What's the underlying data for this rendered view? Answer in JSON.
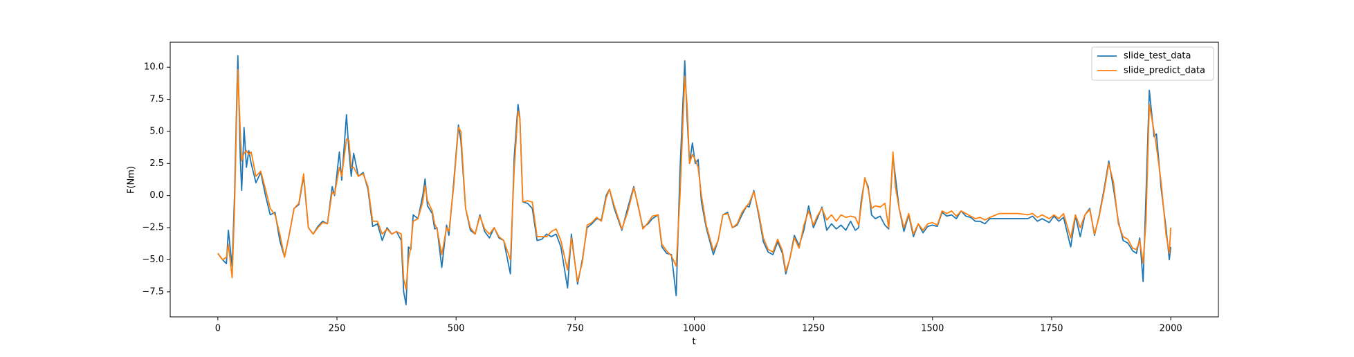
{
  "chart_data": {
    "type": "line",
    "xlabel": "t",
    "ylabel": "F(Nm)",
    "legend": "upper right",
    "grid": false,
    "xlim": [
      -100,
      2100
    ],
    "ylim": [
      -9.45,
      11.95
    ],
    "xticks": [
      0,
      250,
      500,
      750,
      1000,
      1250,
      1500,
      1750,
      2000
    ],
    "yticks": [
      {
        "value": -7.5,
        "label": "−7.5"
      },
      {
        "value": -5,
        "label": "−5.0"
      },
      {
        "value": -2.5,
        "label": "−2.5"
      },
      {
        "value": 0,
        "label": "0.0"
      },
      {
        "value": 2.5,
        "label": "2.5"
      },
      {
        "value": 5,
        "label": "5.0"
      },
      {
        "value": 7.5,
        "label": "7.5"
      },
      {
        "value": 10,
        "label": "10.0"
      }
    ],
    "x": [
      0,
      10,
      18,
      22,
      30,
      35,
      40,
      42,
      47,
      50,
      55,
      60,
      65,
      70,
      80,
      90,
      100,
      110,
      120,
      130,
      140,
      150,
      160,
      170,
      180,
      190,
      200,
      210,
      220,
      230,
      240,
      245,
      255,
      260,
      270,
      275,
      280,
      285,
      295,
      305,
      315,
      325,
      335,
      345,
      355,
      365,
      375,
      385,
      390,
      395,
      400,
      405,
      410,
      420,
      430,
      435,
      440,
      450,
      455,
      460,
      470,
      480,
      485,
      495,
      505,
      510,
      520,
      530,
      540,
      550,
      560,
      570,
      580,
      590,
      600,
      614,
      622,
      630,
      634,
      640,
      650,
      660,
      670,
      680,
      690,
      700,
      710,
      720,
      734,
      742,
      755,
      765,
      775,
      785,
      795,
      805,
      815,
      822,
      832,
      848,
      860,
      873,
      882,
      892,
      903,
      912,
      924,
      932,
      942,
      952,
      962,
      970,
      980,
      985,
      990,
      996,
      1002,
      1008,
      1015,
      1025,
      1040,
      1050,
      1060,
      1070,
      1080,
      1090,
      1100,
      1110,
      1115,
      1125,
      1135,
      1145,
      1155,
      1165,
      1175,
      1185,
      1192,
      1200,
      1210,
      1220,
      1230,
      1240,
      1250,
      1258,
      1268,
      1278,
      1288,
      1298,
      1308,
      1318,
      1328,
      1338,
      1345,
      1350,
      1358,
      1365,
      1372,
      1380,
      1390,
      1400,
      1408,
      1417,
      1422,
      1430,
      1440,
      1450,
      1460,
      1470,
      1480,
      1490,
      1500,
      1510,
      1520,
      1530,
      1540,
      1550,
      1560,
      1570,
      1580,
      1590,
      1600,
      1610,
      1620,
      1640,
      1660,
      1680,
      1700,
      1710,
      1720,
      1730,
      1745,
      1755,
      1765,
      1775,
      1790,
      1800,
      1810,
      1820,
      1830,
      1840,
      1850,
      1860,
      1870,
      1880,
      1890,
      1900,
      1910,
      1920,
      1928,
      1935,
      1942,
      1948,
      1955,
      1965,
      1970,
      1980,
      1990,
      1997,
      2000
    ],
    "series": [
      {
        "name": "slide_test_data",
        "color": "#1f77b4",
        "values": [
          -4.5,
          -5.0,
          -5.3,
          -2.7,
          -5.5,
          0,
          8,
          10.9,
          3,
          0.4,
          5.3,
          2.2,
          3.5,
          2.5,
          1,
          1.8,
          0,
          -1.5,
          -1.3,
          -3.5,
          -4.8,
          -3,
          -1,
          -0.7,
          1.5,
          -2.5,
          -3,
          -2.4,
          -2,
          -2.2,
          0.7,
          0,
          3.4,
          1.2,
          6.3,
          3.5,
          1.5,
          3.3,
          1.5,
          1.8,
          0.5,
          -2.4,
          -2.2,
          -3.5,
          -2.5,
          -3,
          -2.8,
          -3.5,
          -7.5,
          -8.5,
          -4,
          -4.2,
          -1.5,
          -1.8,
          0,
          1.3,
          -0.8,
          -1.4,
          -2.6,
          -2.5,
          -5.6,
          -2.3,
          -3.1,
          1,
          5.5,
          4.3,
          -1,
          -2.7,
          -3,
          -1.5,
          -2.8,
          -3.3,
          -2.5,
          -3.3,
          -3.5,
          -6.1,
          3,
          7.1,
          6,
          -0.5,
          -0.6,
          -1,
          -3.5,
          -3.4,
          -3.0,
          -3.2,
          -3.0,
          -4,
          -7.2,
          -3,
          -6.9,
          -5,
          -2.5,
          -2.2,
          -1.8,
          -1.9,
          0,
          0.5,
          -1,
          -2.7,
          -1,
          0.7,
          -0.8,
          -2.5,
          -2.2,
          -1.8,
          -1.5,
          -4,
          -4.5,
          -4.6,
          -7.8,
          2,
          10.5,
          6,
          2.5,
          4.1,
          2.5,
          2.8,
          -0.5,
          -2.5,
          -4.6,
          -3.5,
          -1.5,
          -1.3,
          -2.5,
          -2.3,
          -1.5,
          -0.8,
          -0.9,
          0.4,
          -1.5,
          -3.6,
          -4.4,
          -4.6,
          -3.6,
          -4.5,
          -6.1,
          -5,
          -3.1,
          -3.9,
          -2.7,
          -0.8,
          -2.5,
          -1.8,
          -0.9,
          -2.7,
          -2.2,
          -2.6,
          -2.3,
          -2.7,
          -2,
          -2.7,
          -2.5,
          -0.5,
          1.3,
          0.7,
          -1.5,
          -1.8,
          -1.6,
          -2.3,
          -2.6,
          3.1,
          1.5,
          -1,
          -2.8,
          -1.5,
          -3.2,
          -2.2,
          -2.9,
          -2.4,
          -2.3,
          -2.4,
          -1.3,
          -1.6,
          -1.5,
          -1.8,
          -1.2,
          -1.6,
          -1.7,
          -2,
          -2,
          -2.2,
          -1.8,
          -1.8,
          -1.8,
          -1.8,
          -1.8,
          -1.6,
          -2,
          -1.8,
          -2.1,
          -1.6,
          -2,
          -1.7,
          -4,
          -1.6,
          -3.2,
          -1.5,
          -1,
          -3.1,
          -1.5,
          0.5,
          2.7,
          0.5,
          -2,
          -3.5,
          -3.7,
          -4.3,
          -4.5,
          -3.3,
          -6.7,
          0,
          8.2,
          4.6,
          4.8,
          0.5,
          -2.5,
          -5,
          -4
        ]
      },
      {
        "name": "slide_predict_data",
        "color": "#ff7f0e",
        "values": [
          -4.5,
          -5.0,
          -4.8,
          -3.8,
          -6.4,
          -1,
          7,
          9.8,
          5,
          2.7,
          3.3,
          3.5,
          3.2,
          3.4,
          1.5,
          1.9,
          0.5,
          -1,
          -1.5,
          -3,
          -4.8,
          -3,
          -1,
          -0.6,
          1.7,
          -2.5,
          -3,
          -2.5,
          -2.1,
          -2.2,
          0.3,
          0.1,
          2.2,
          1.5,
          4.4,
          4.3,
          2.2,
          2.2,
          1.5,
          1.7,
          0.7,
          -2,
          -2,
          -3,
          -2.6,
          -3,
          -2.8,
          -3,
          -6.5,
          -7.3,
          -5,
          -4,
          -2,
          -1.8,
          -0.5,
          0.8,
          -0.4,
          -1.2,
          -2.2,
          -2.6,
          -4.6,
          -2.5,
          -2.8,
          0.7,
          5.3,
          5,
          -1,
          -2.5,
          -3,
          -1.6,
          -2.6,
          -3,
          -2.5,
          -3.2,
          -3.5,
          -5,
          2,
          6.6,
          6,
          -0.5,
          -0.4,
          -0.5,
          -3.2,
          -3.2,
          -3.2,
          -2.8,
          -2.6,
          -3.5,
          -5.8,
          -3.3,
          -6.7,
          -5.2,
          -2.3,
          -2.1,
          -1.7,
          -2,
          -0.2,
          0.5,
          -0.8,
          -2.6,
          -1.3,
          0.6,
          -0.7,
          -2.6,
          -2.1,
          -1.6,
          -1.5,
          -3.8,
          -4.3,
          -4.7,
          -5.5,
          0,
          9.3,
          7,
          2.5,
          3.2,
          2.8,
          2.2,
          0,
          -2.3,
          -4.3,
          -3.5,
          -1.5,
          -1.4,
          -2.5,
          -2.2,
          -1.3,
          -0.8,
          -0.6,
          0.3,
          -1.3,
          -3.3,
          -4.2,
          -4.4,
          -3.4,
          -4.3,
          -5.9,
          -5,
          -3.3,
          -4.1,
          -2.3,
          -1.2,
          -2.3,
          -1.6,
          -1,
          -1.9,
          -1.5,
          -2.0,
          -1.5,
          -1.7,
          -1.6,
          -1.7,
          -2.3,
          -0.9,
          1.4,
          0.5,
          -1,
          -0.8,
          -0.9,
          -0.6,
          -2.5,
          3.4,
          0.7,
          -1,
          -2.5,
          -1.4,
          -3,
          -2.2,
          -2.7,
          -2.2,
          -2.1,
          -2.3,
          -1.2,
          -1.4,
          -1.2,
          -1.6,
          -1.2,
          -1.4,
          -1.6,
          -1.8,
          -1.7,
          -1.9,
          -1.7,
          -1.4,
          -1.4,
          -1.4,
          -1.5,
          -1.4,
          -1.7,
          -1.5,
          -1.8,
          -1.5,
          -1.8,
          -1.4,
          -3.3,
          -1.5,
          -2.5,
          -1.5,
          -1.1,
          -3,
          -1.6,
          0.3,
          2.5,
          1,
          -2.2,
          -3.2,
          -3.4,
          -4.1,
          -4.2,
          -3.5,
          -5.3,
          -2,
          7.1,
          5,
          3.8,
          1,
          -3,
          -4.5,
          -2.5
        ]
      }
    ]
  }
}
